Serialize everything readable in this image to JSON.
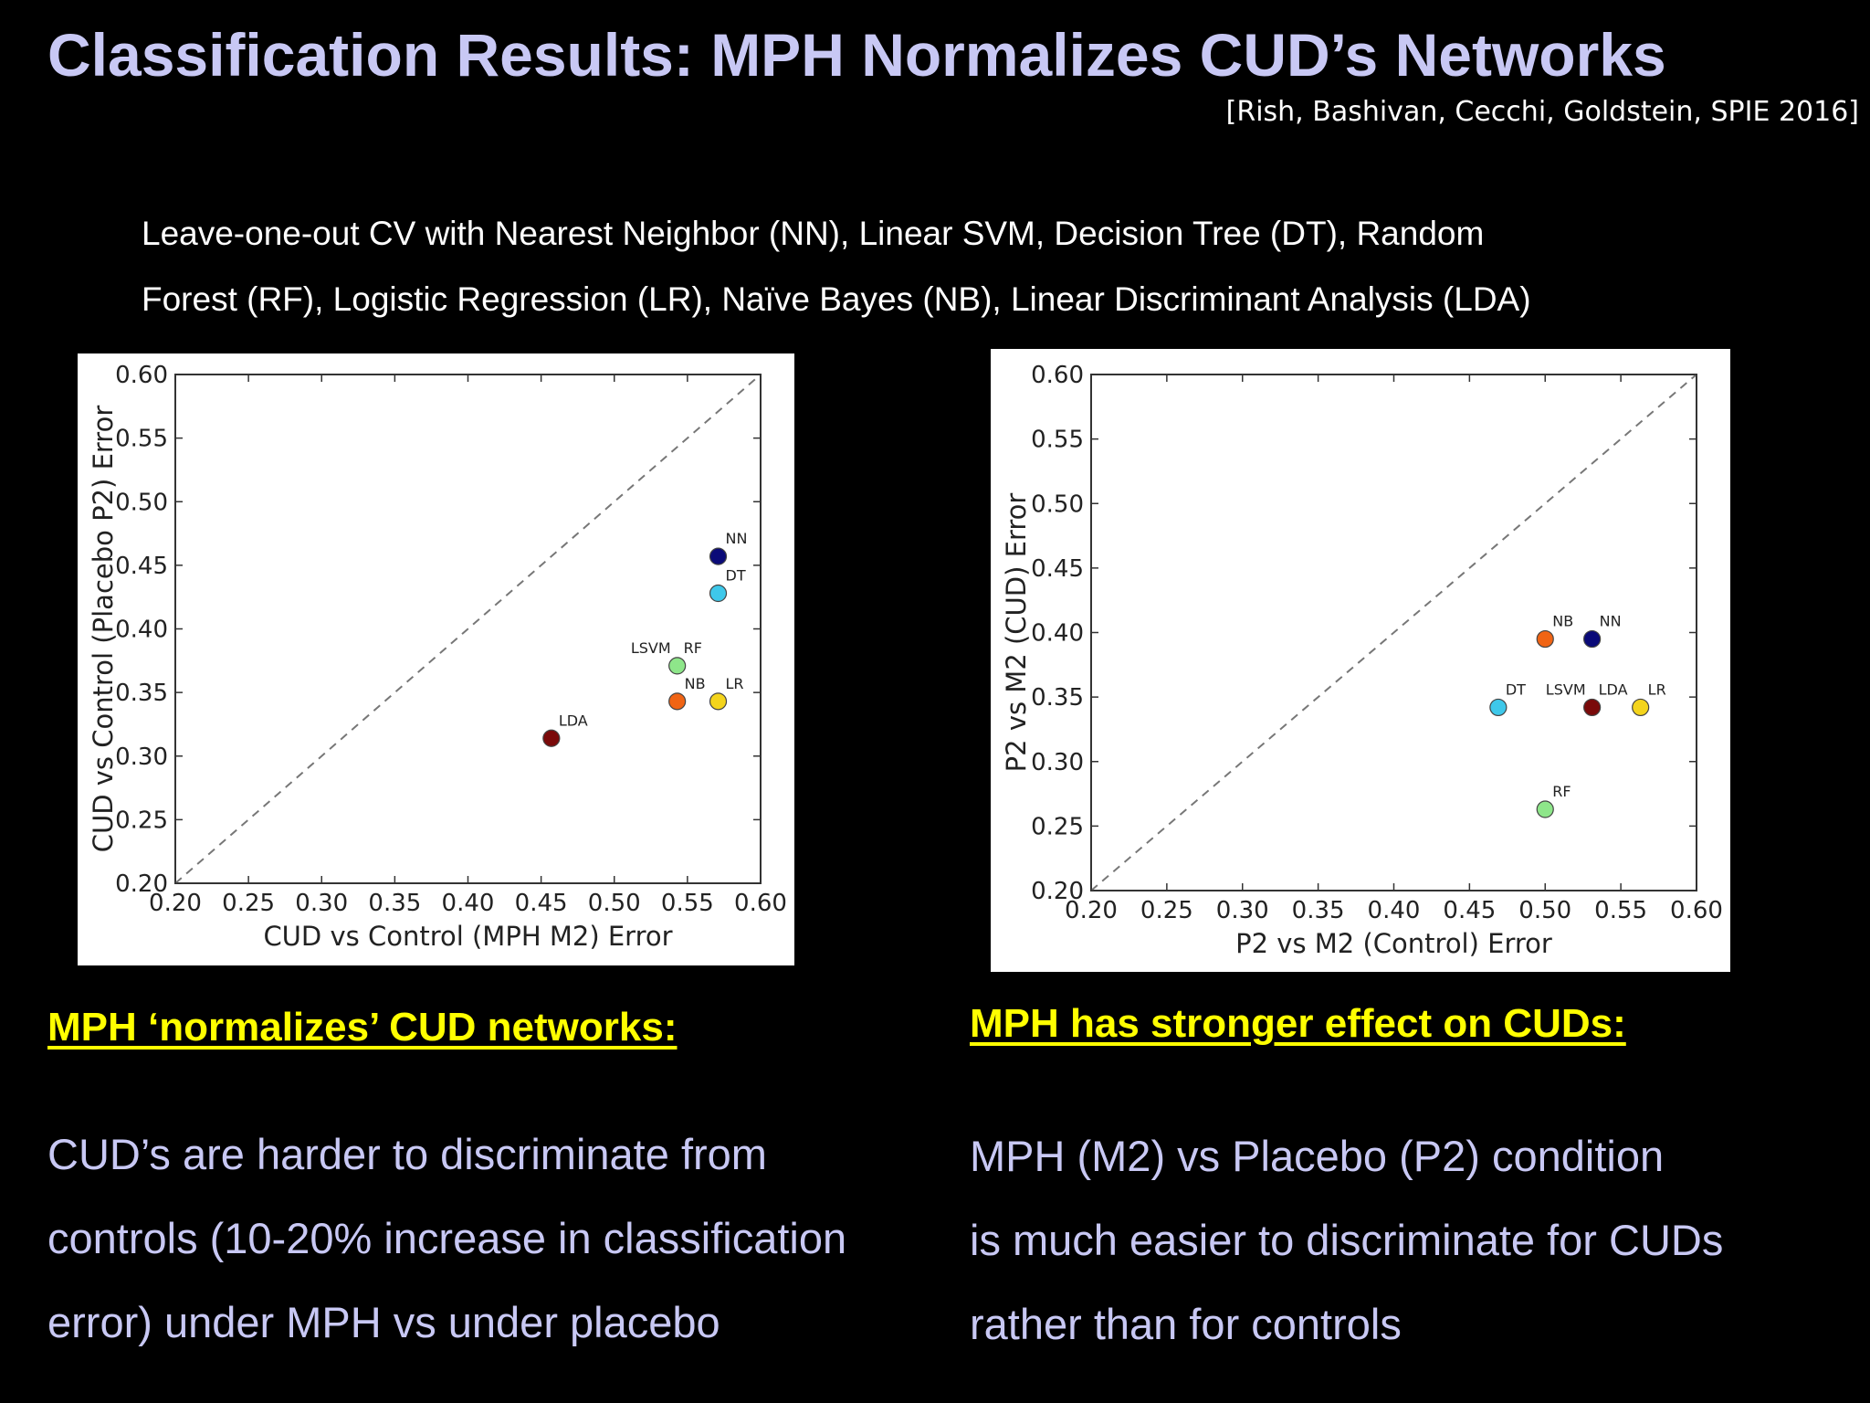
{
  "slide": {
    "title": "Classification Results: MPH Normalizes CUD’s Networks",
    "citation": "[Rish, Bashivan, Cecchi, Goldstein, SPIE 2016]",
    "intro_lines": [
      "Leave-one-out CV with Nearest Neighbor (NN),  Linear SVM, Decision Tree (DT),  Random",
      "Forest (RF), Logistic Regression (LR),  Naïve Bayes (NB), Linear Discriminant Analysis (LDA)"
    ],
    "left": {
      "heading": "MPH ‘normalizes’ CUD networks:",
      "body_lines": [
        "CUD’s are harder to discriminate from",
        "controls (10-20% increase in classification",
        "error)  under MPH vs under placebo"
      ]
    },
    "right": {
      "heading": "MPH has stronger effect on CUDs:",
      "body_lines": [
        "MPH (M2) vs Placebo (P2) condition",
        "is much easier to discriminate for CUDs",
        "rather than for controls"
      ]
    }
  },
  "chart_data": [
    {
      "type": "scatter",
      "xlabel": "CUD vs Control (MPH M2) Error",
      "ylabel": "CUD vs Control (Placebo P2) Error",
      "xlim": [
        0.2,
        0.6
      ],
      "ylim": [
        0.2,
        0.6
      ],
      "xticks": [
        "0.20",
        "0.25",
        "0.30",
        "0.35",
        "0.40",
        "0.45",
        "0.50",
        "0.55",
        "0.60"
      ],
      "yticks": [
        "0.20",
        "0.25",
        "0.30",
        "0.35",
        "0.40",
        "0.45",
        "0.50",
        "0.55",
        "0.60"
      ],
      "diagonal": true,
      "grid": false,
      "points": [
        {
          "label": "NN",
          "x": 0.571,
          "y": 0.457,
          "color": "#0a0a78"
        },
        {
          "label": "DT",
          "x": 0.571,
          "y": 0.428,
          "color": "#3ec8ea"
        },
        {
          "label": "LSVM",
          "x": 0.543,
          "y": 0.371,
          "color": "#8ee68a"
        },
        {
          "label": "RF",
          "x": 0.543,
          "y": 0.371,
          "color": "#8ee68a"
        },
        {
          "label": "NB",
          "x": 0.543,
          "y": 0.343,
          "color": "#f06414"
        },
        {
          "label": "LR",
          "x": 0.571,
          "y": 0.343,
          "color": "#f4d41c"
        },
        {
          "label": "LDA",
          "x": 0.457,
          "y": 0.314,
          "color": "#7a0a0a"
        }
      ]
    },
    {
      "type": "scatter",
      "xlabel": "P2 vs M2 (Control) Error",
      "ylabel": "P2 vs M2 (CUD) Error",
      "xlim": [
        0.2,
        0.6
      ],
      "ylim": [
        0.2,
        0.6
      ],
      "xticks": [
        "0.20",
        "0.25",
        "0.30",
        "0.35",
        "0.40",
        "0.45",
        "0.50",
        "0.55",
        "0.60"
      ],
      "yticks": [
        "0.20",
        "0.25",
        "0.30",
        "0.35",
        "0.40",
        "0.45",
        "0.50",
        "0.55",
        "0.60"
      ],
      "diagonal": true,
      "grid": false,
      "points": [
        {
          "label": "NB",
          "x": 0.5,
          "y": 0.395,
          "color": "#f06414"
        },
        {
          "label": "NN",
          "x": 0.531,
          "y": 0.395,
          "color": "#0a0a78"
        },
        {
          "label": "DT",
          "x": 0.469,
          "y": 0.342,
          "color": "#3ec8ea"
        },
        {
          "label": "LSVM",
          "x": 0.531,
          "y": 0.342,
          "color": "#7a0a0a"
        },
        {
          "label": "LDA",
          "x": 0.531,
          "y": 0.342,
          "color": "#7a0a0a"
        },
        {
          "label": "LR",
          "x": 0.563,
          "y": 0.342,
          "color": "#f4d41c"
        },
        {
          "label": "RF",
          "x": 0.5,
          "y": 0.263,
          "color": "#8ee68a"
        }
      ]
    }
  ]
}
